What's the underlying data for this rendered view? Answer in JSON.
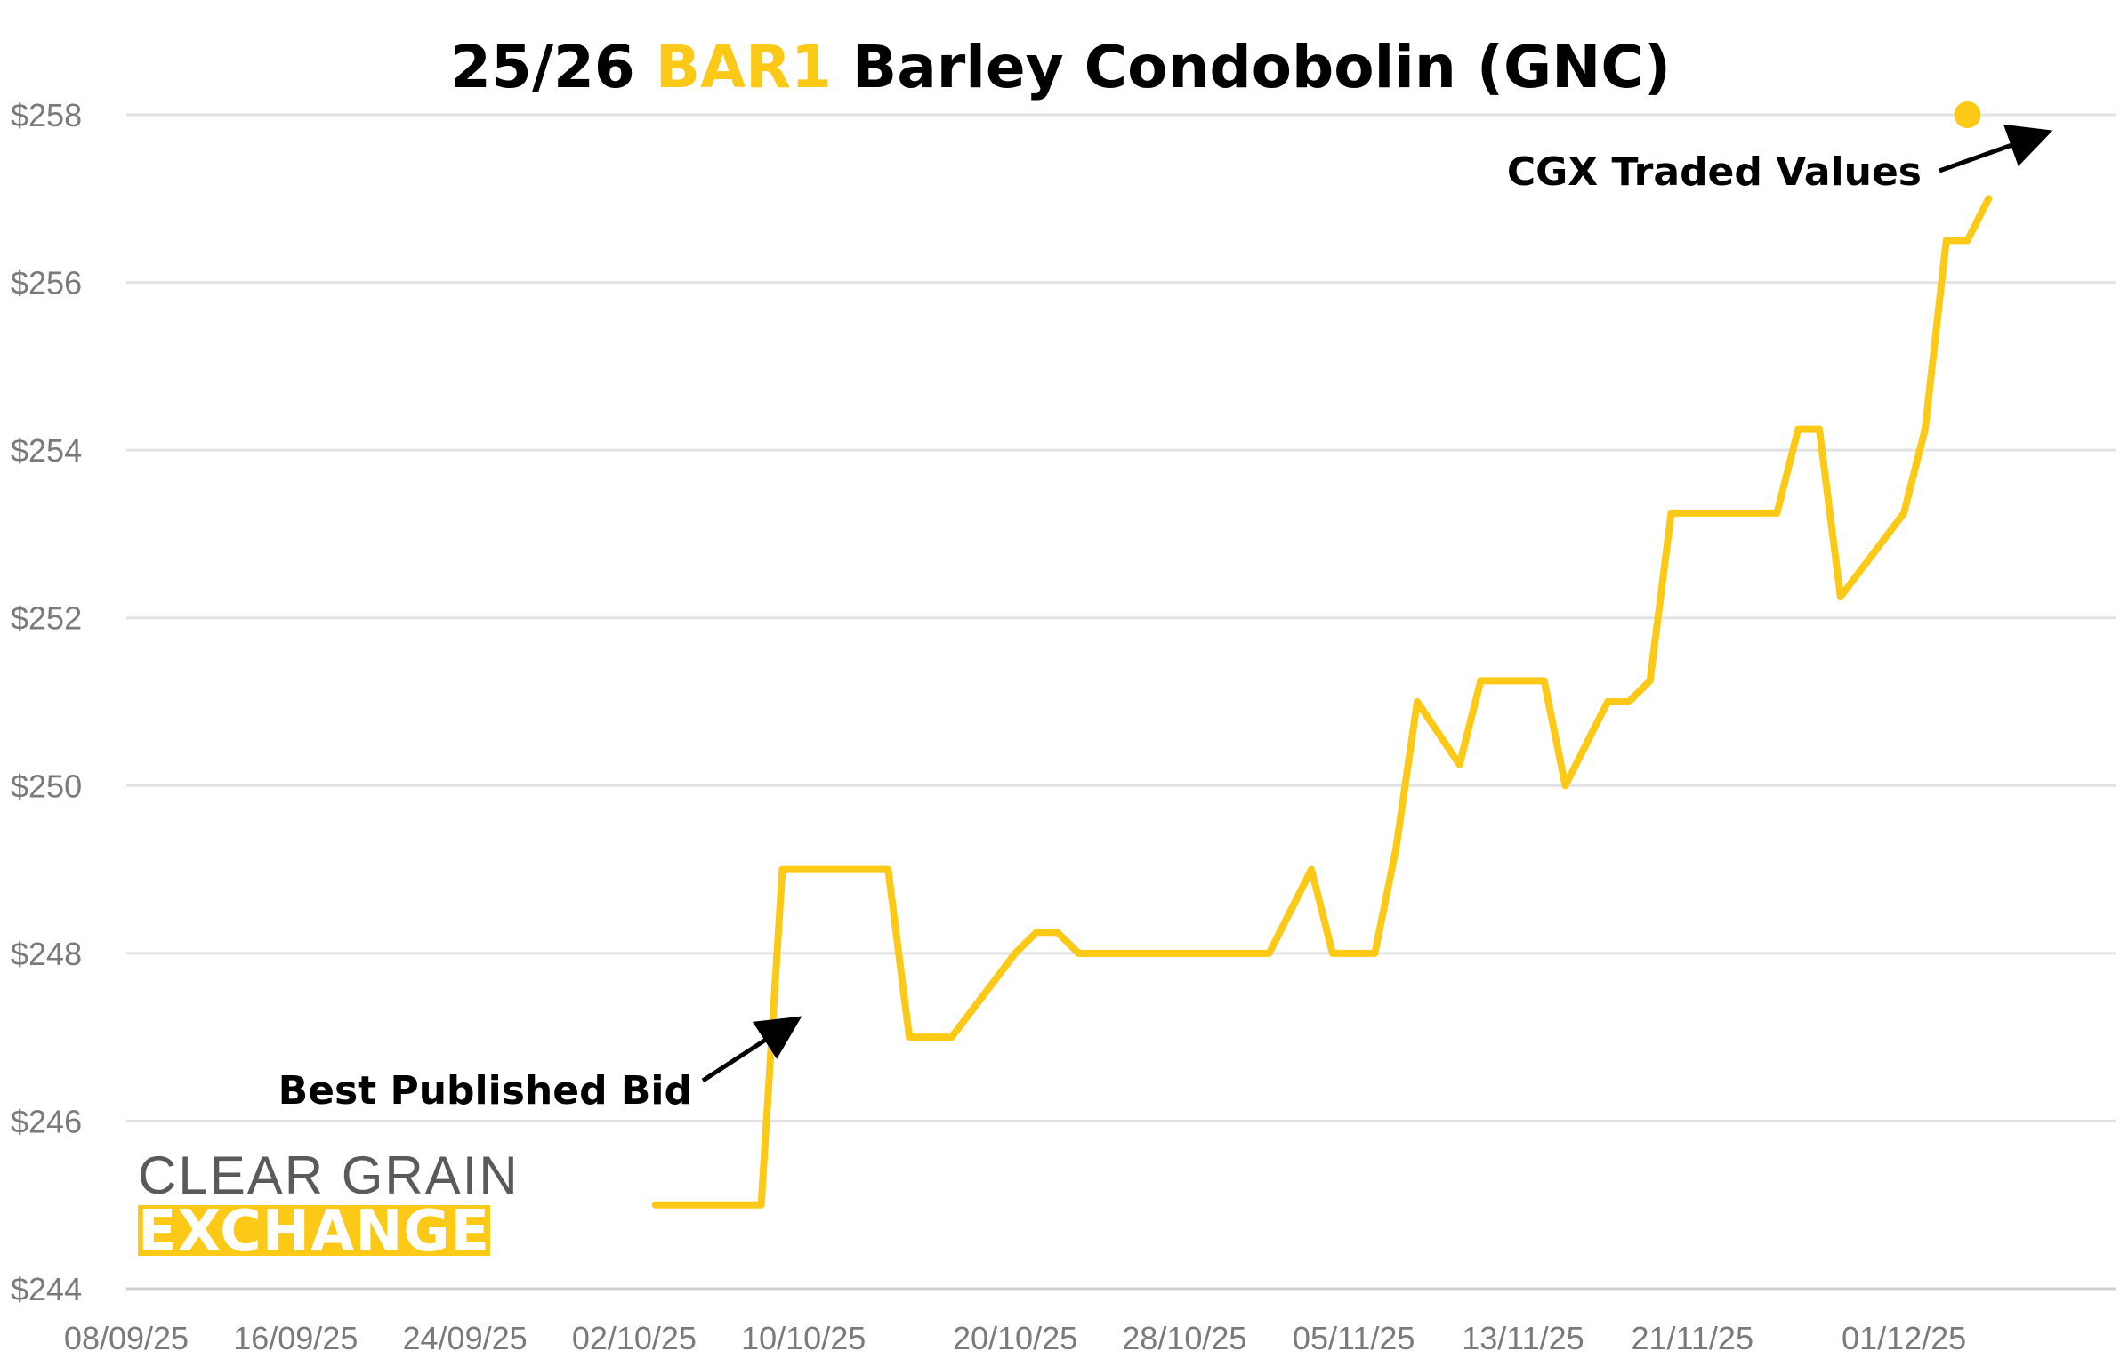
{
  "chart_data": {
    "type": "line",
    "title_parts": [
      "25/26 ",
      "BAR1",
      " Barley Condobolin (GNC)"
    ],
    "accent_color": "#fcc916",
    "line_color": "#fcc916",
    "ylim": [
      244,
      258
    ],
    "yticks": [
      244,
      246,
      248,
      250,
      252,
      254,
      256,
      258
    ],
    "ytick_labels": [
      "$244",
      "$246",
      "$248",
      "$250",
      "$252",
      "$254",
      "$256",
      "$258"
    ],
    "xlim": [
      "08/09/25",
      "11/12/25"
    ],
    "xticks": [
      "08/09/25",
      "16/09/25",
      "24/09/25",
      "02/10/25",
      "10/10/25",
      "20/10/25",
      "28/10/25",
      "05/11/25",
      "13/11/25",
      "21/11/25",
      "01/12/25"
    ],
    "grid": true,
    "series": [
      {
        "points": [
          [
            "03/10/25",
            245
          ],
          [
            "04/10/25",
            245
          ],
          [
            "05/10/25",
            245
          ],
          [
            "06/10/25",
            245
          ],
          [
            "07/10/25",
            245
          ],
          [
            "08/10/25",
            245
          ],
          [
            "09/10/25",
            249
          ],
          [
            "10/10/25",
            249
          ],
          [
            "11/10/25",
            249
          ],
          [
            "12/10/25",
            249
          ],
          [
            "13/10/25",
            249
          ],
          [
            "14/10/25",
            249
          ],
          [
            "15/10/25",
            247
          ],
          [
            "16/10/25",
            247
          ],
          [
            "17/10/25",
            247
          ],
          [
            "20/10/25",
            248
          ],
          [
            "21/10/25",
            248.25
          ],
          [
            "22/10/25",
            248.25
          ],
          [
            "23/10/25",
            248
          ],
          [
            "24/10/25",
            248
          ],
          [
            "27/10/25",
            248
          ],
          [
            "28/10/25",
            248
          ],
          [
            "29/10/25",
            248
          ],
          [
            "30/10/25",
            248
          ],
          [
            "31/10/25",
            248
          ],
          [
            "01/11/25",
            248
          ],
          [
            "03/11/25",
            249
          ],
          [
            "04/11/25",
            248
          ],
          [
            "05/11/25",
            248
          ],
          [
            "06/11/25",
            248
          ],
          [
            "07/11/25",
            249.25
          ],
          [
            "08/11/25",
            251
          ],
          [
            "10/11/25",
            250.25
          ],
          [
            "11/11/25",
            251.25
          ],
          [
            "12/11/25",
            251.25
          ],
          [
            "13/11/25",
            251.25
          ],
          [
            "14/11/25",
            251.25
          ],
          [
            "15/11/25",
            250
          ],
          [
            "17/11/25",
            251
          ],
          [
            "18/11/25",
            251
          ],
          [
            "19/11/25",
            251.25
          ],
          [
            "20/11/25",
            253.25
          ],
          [
            "21/11/25",
            253.25
          ],
          [
            "24/11/25",
            253.25
          ],
          [
            "25/11/25",
            253.25
          ],
          [
            "26/11/25",
            254.25
          ],
          [
            "27/11/25",
            254.25
          ],
          [
            "28/11/25",
            252.25
          ],
          [
            "01/12/25",
            253.25
          ],
          [
            "02/12/25",
            254.25
          ],
          [
            "03/12/25",
            256.5
          ],
          [
            "04/12/25",
            256.5
          ],
          [
            "05/12/25",
            257
          ]
        ]
      }
    ],
    "traded_values": [
      [
        "04/12/25",
        258
      ]
    ],
    "annotations": [
      {
        "text": "CGX Traded Values",
        "target": "traded-point"
      },
      {
        "text": "Best Published Bid",
        "target": "line"
      }
    ],
    "logo": {
      "line1": "CLEAR GRAIN",
      "line2": "EXCHANGE"
    }
  }
}
